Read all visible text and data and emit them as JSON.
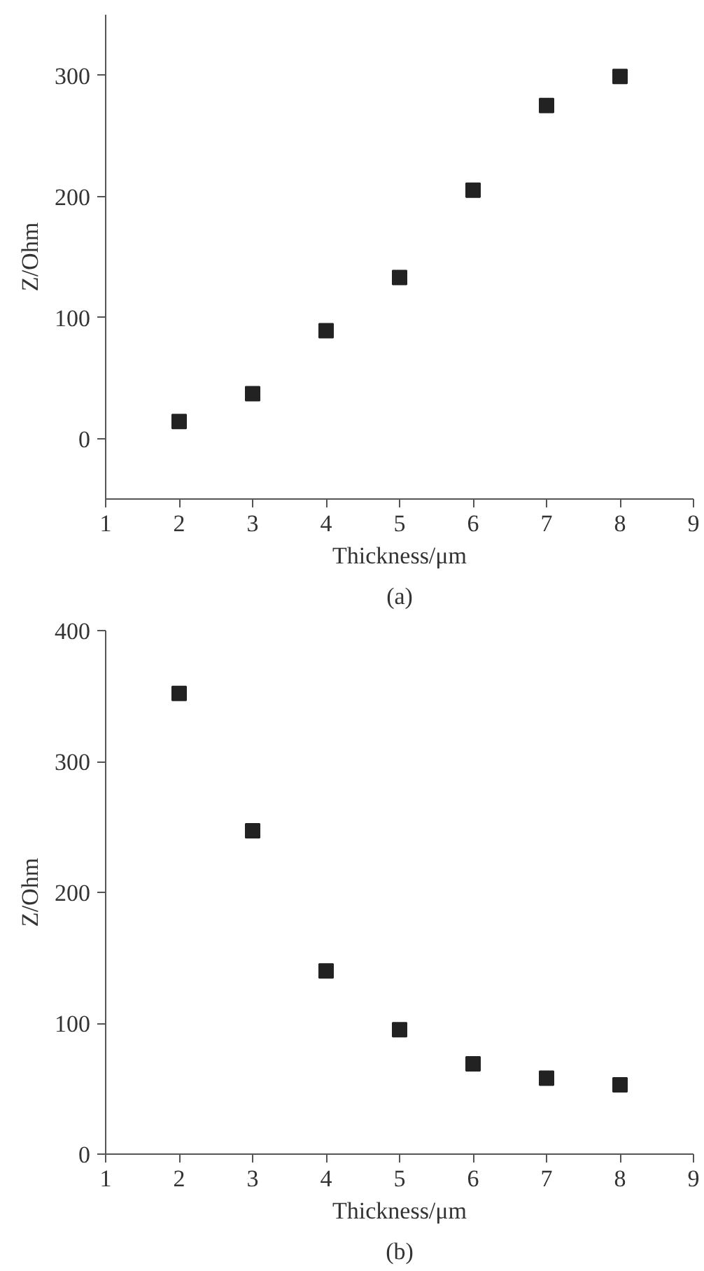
{
  "chart_data": [
    {
      "type": "scatter",
      "xlabel": "Thickness/μm",
      "ylabel": "Z/Ohm",
      "annotations": [
        "(a)"
      ],
      "marker": "square",
      "grid": false,
      "x": [
        2,
        3,
        4,
        5,
        6,
        7,
        8
      ],
      "xlim": [
        1,
        9
      ],
      "xticks": [
        1,
        2,
        3,
        4,
        5,
        6,
        7,
        8,
        9
      ],
      "ylim": [
        -50,
        350
      ],
      "yticks": [
        0,
        100,
        200,
        300
      ],
      "series": [
        {
          "color": "#222222",
          "values": [
            14,
            37,
            89,
            133,
            205,
            275,
            299
          ]
        }
      ]
    },
    {
      "type": "scatter",
      "xlabel": "Thickness/μm",
      "ylabel": "Z/Ohm",
      "annotations": [
        "(b)"
      ],
      "marker": "square",
      "grid": false,
      "x": [
        2,
        3,
        4,
        5,
        6,
        7,
        8
      ],
      "xlim": [
        1,
        9
      ],
      "xticks": [
        1,
        2,
        3,
        4,
        5,
        6,
        7,
        8,
        9
      ],
      "ylim": [
        0,
        400
      ],
      "yticks": [
        0,
        100,
        200,
        300,
        400
      ],
      "series": [
        {
          "color": "#222222",
          "values": [
            352,
            247,
            140,
            95,
            69,
            58,
            53
          ]
        }
      ]
    }
  ]
}
